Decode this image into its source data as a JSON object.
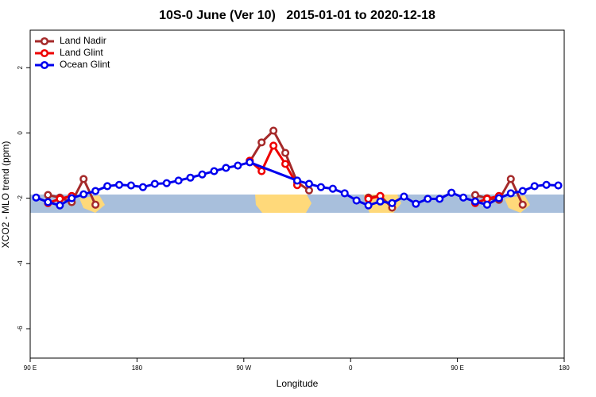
{
  "chart_data": {
    "type": "line",
    "title": "10S-0 June (Ver 10)   2015-01-01 to 2020-12-18",
    "xlabel": "Longitude",
    "ylabel": "XCO2 - MLO trend (ppm)",
    "xlim": [
      90,
      540
    ],
    "xticks": [
      {
        "value": 90,
        "label": "90 E"
      },
      {
        "value": 180,
        "label": "180"
      },
      {
        "value": 270,
        "label": "90 W"
      },
      {
        "value": 360,
        "label": "0"
      },
      {
        "value": 450,
        "label": "90 E"
      },
      {
        "value": 540,
        "label": "180"
      }
    ],
    "ylim": [
      -6.9,
      3.15
    ],
    "yticks": [
      -6,
      -4,
      -2,
      0,
      2
    ],
    "legend": "top-left",
    "series": [
      {
        "name": "Land Nadir",
        "color": "#a52a2a",
        "x": [
          105,
          115,
          125,
          135,
          145,
          155,
          275,
          285,
          295,
          305,
          315,
          325,
          335,
          375,
          385,
          395,
          405,
          465,
          475,
          485,
          495,
          505
        ],
        "values": [
          -1.9,
          -1.98,
          -2.12,
          -1.41,
          -2.2,
          null,
          -0.88,
          -0.29,
          0.07,
          -0.61,
          -1.51,
          -1.76,
          null,
          -1.98,
          -1.93,
          -2.29,
          null,
          -1.9,
          -2.0,
          -2.05,
          -1.41,
          -2.2
        ]
      },
      {
        "name": "Land Glint",
        "color": "#ee0000",
        "x": [
          105,
          115,
          125,
          135,
          275,
          285,
          295,
          305,
          315,
          325,
          375,
          385,
          395,
          465,
          475,
          485
        ],
        "values": [
          -2.15,
          -2.02,
          -1.93,
          null,
          -0.85,
          -1.17,
          -0.39,
          -0.95,
          -1.6,
          null,
          -2.02,
          -1.93,
          null,
          -2.15,
          -2.02,
          -1.93
        ]
      },
      {
        "name": "Ocean Glint",
        "color": "#0000ee",
        "x": [
          95,
          105,
          115,
          125,
          135,
          145,
          155,
          165,
          175,
          185,
          195,
          205,
          215,
          225,
          235,
          245,
          255,
          265,
          275,
          315,
          325,
          335,
          345,
          355,
          365,
          375,
          385,
          395,
          405,
          415,
          425,
          435,
          445,
          455,
          465,
          475,
          485,
          495,
          505,
          515,
          525,
          535
        ],
        "values": [
          -1.98,
          -2.12,
          -2.22,
          -2.0,
          -1.88,
          -1.78,
          -1.63,
          -1.59,
          -1.61,
          -1.66,
          -1.56,
          -1.54,
          -1.46,
          -1.37,
          -1.27,
          -1.17,
          -1.07,
          -1.0,
          -0.9,
          -1.46,
          -1.56,
          -1.66,
          -1.71,
          -1.85,
          -2.07,
          -2.22,
          -2.1,
          -2.15,
          -1.95,
          -2.17,
          -2.02,
          -2.02,
          -1.83,
          -1.98,
          -2.1,
          -2.2,
          -2.0,
          -1.85,
          -1.78,
          -1.63,
          -1.59,
          -1.61
        ]
      }
    ]
  }
}
